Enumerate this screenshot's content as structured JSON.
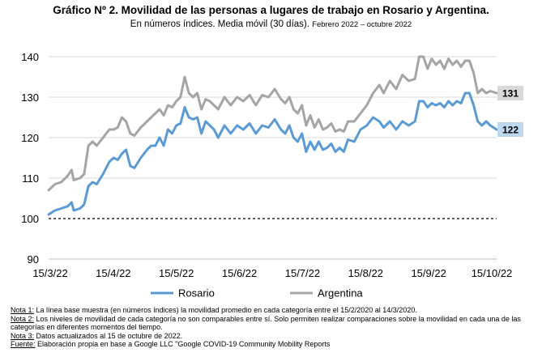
{
  "header": {
    "title": "Gráfico Nº 2. Movilidad de las personas a lugares de trabajo en Rosario y Argentina.",
    "subtitle_main": "En números índices. Media móvil (30 días).",
    "subtitle_period": "Febrero 2022 – octubre 2022"
  },
  "chart_data": {
    "type": "line",
    "title": "Gráfico Nº 2. Movilidad de las personas a lugares de trabajo en Rosario y Argentina.",
    "subtitle": "En números índices. Media móvil (30 días). Febrero 2022 – octubre 2022",
    "xlabel": "",
    "ylabel": "",
    "x_start": "2022-03-15",
    "x_end": "2022-10-15",
    "x_ticks": [
      "15/3/22",
      "15/4/22",
      "15/5/22",
      "15/6/22",
      "15/7/22",
      "15/8/22",
      "15/9/22",
      "15/10/22"
    ],
    "y_ticks": [
      90,
      100,
      110,
      120,
      130,
      140
    ],
    "ylim": [
      90,
      145
    ],
    "baseline": 100,
    "grid": "horizontal",
    "legend": "bottom",
    "series": [
      {
        "name": "Rosario",
        "color": "#5b9bd5",
        "end_label": "122",
        "points": [
          [
            "2022-03-15",
            101
          ],
          [
            "2022-03-18",
            102
          ],
          [
            "2022-03-21",
            102.5
          ],
          [
            "2022-03-24",
            103
          ],
          [
            "2022-03-26",
            104
          ],
          [
            "2022-03-27",
            102
          ],
          [
            "2022-03-30",
            102.5
          ],
          [
            "2022-04-01",
            103.5
          ],
          [
            "2022-04-03",
            108
          ],
          [
            "2022-04-05",
            109
          ],
          [
            "2022-04-07",
            108.5
          ],
          [
            "2022-04-10",
            111
          ],
          [
            "2022-04-13",
            114
          ],
          [
            "2022-04-15",
            115
          ],
          [
            "2022-04-17",
            114.5
          ],
          [
            "2022-04-19",
            116
          ],
          [
            "2022-04-21",
            117
          ],
          [
            "2022-04-23",
            113
          ],
          [
            "2022-04-25",
            112.5
          ],
          [
            "2022-04-28",
            115
          ],
          [
            "2022-05-01",
            117
          ],
          [
            "2022-05-03",
            118
          ],
          [
            "2022-05-05",
            118
          ],
          [
            "2022-05-07",
            120
          ],
          [
            "2022-05-09",
            118
          ],
          [
            "2022-05-11",
            122
          ],
          [
            "2022-05-13",
            121
          ],
          [
            "2022-05-15",
            123
          ],
          [
            "2022-05-17",
            123.5
          ],
          [
            "2022-05-19",
            127.5
          ],
          [
            "2022-05-21",
            125
          ],
          [
            "2022-05-23",
            124.5
          ],
          [
            "2022-05-25",
            125
          ],
          [
            "2022-05-27",
            121
          ],
          [
            "2022-05-29",
            124
          ],
          [
            "2022-05-31",
            123
          ],
          [
            "2022-06-02",
            122
          ],
          [
            "2022-06-04",
            120
          ],
          [
            "2022-06-07",
            123
          ],
          [
            "2022-06-10",
            121
          ],
          [
            "2022-06-13",
            123
          ],
          [
            "2022-06-16",
            122
          ],
          [
            "2022-06-19",
            123.5
          ],
          [
            "2022-06-22",
            121
          ],
          [
            "2022-06-25",
            123
          ],
          [
            "2022-06-28",
            122.5
          ],
          [
            "2022-07-01",
            124.5
          ],
          [
            "2022-07-04",
            122
          ],
          [
            "2022-07-06",
            121
          ],
          [
            "2022-07-08",
            123
          ],
          [
            "2022-07-10",
            120
          ],
          [
            "2022-07-12",
            119
          ],
          [
            "2022-07-14",
            121
          ],
          [
            "2022-07-16",
            116.5
          ],
          [
            "2022-07-18",
            119
          ],
          [
            "2022-07-20",
            117
          ],
          [
            "2022-07-22",
            119
          ],
          [
            "2022-07-24",
            117
          ],
          [
            "2022-07-26",
            117.5
          ],
          [
            "2022-07-28",
            118.5
          ],
          [
            "2022-07-30",
            116.5
          ],
          [
            "2022-08-01",
            117.5
          ],
          [
            "2022-08-03",
            116.5
          ],
          [
            "2022-08-05",
            119.5
          ],
          [
            "2022-08-08",
            119
          ],
          [
            "2022-08-11",
            122
          ],
          [
            "2022-08-14",
            123
          ],
          [
            "2022-08-17",
            125
          ],
          [
            "2022-08-20",
            124
          ],
          [
            "2022-08-22",
            122.5
          ],
          [
            "2022-08-25",
            124
          ],
          [
            "2022-08-28",
            122
          ],
          [
            "2022-08-31",
            124
          ],
          [
            "2022-09-03",
            123
          ],
          [
            "2022-09-06",
            124
          ],
          [
            "2022-09-08",
            129
          ],
          [
            "2022-09-10",
            129
          ],
          [
            "2022-09-12",
            127.5
          ],
          [
            "2022-09-14",
            128.5
          ],
          [
            "2022-09-16",
            128
          ],
          [
            "2022-09-18",
            128.5
          ],
          [
            "2022-09-20",
            127.5
          ],
          [
            "2022-09-22",
            129
          ],
          [
            "2022-09-24",
            128
          ],
          [
            "2022-09-26",
            129
          ],
          [
            "2022-09-28",
            128.5
          ],
          [
            "2022-09-30",
            131
          ],
          [
            "2022-10-02",
            131
          ],
          [
            "2022-10-04",
            128
          ],
          [
            "2022-10-06",
            124
          ],
          [
            "2022-10-08",
            123
          ],
          [
            "2022-10-10",
            124
          ],
          [
            "2022-10-12",
            123
          ],
          [
            "2022-10-15",
            122
          ]
        ]
      },
      {
        "name": "Argentina",
        "color": "#a5a5a5",
        "end_label": "131",
        "points": [
          [
            "2022-03-15",
            107
          ],
          [
            "2022-03-18",
            108.5
          ],
          [
            "2022-03-21",
            109
          ],
          [
            "2022-03-24",
            110.5
          ],
          [
            "2022-03-26",
            112
          ],
          [
            "2022-03-27",
            109.5
          ],
          [
            "2022-03-30",
            110
          ],
          [
            "2022-04-01",
            111
          ],
          [
            "2022-04-03",
            118
          ],
          [
            "2022-04-05",
            119
          ],
          [
            "2022-04-07",
            118
          ],
          [
            "2022-04-10",
            120
          ],
          [
            "2022-04-13",
            122
          ],
          [
            "2022-04-15",
            122
          ],
          [
            "2022-04-17",
            122.5
          ],
          [
            "2022-04-19",
            125
          ],
          [
            "2022-04-21",
            124
          ],
          [
            "2022-04-23",
            121
          ],
          [
            "2022-04-25",
            120.5
          ],
          [
            "2022-04-28",
            122.5
          ],
          [
            "2022-05-01",
            124
          ],
          [
            "2022-05-03",
            125
          ],
          [
            "2022-05-05",
            126
          ],
          [
            "2022-05-07",
            127
          ],
          [
            "2022-05-09",
            125.5
          ],
          [
            "2022-05-11",
            128
          ],
          [
            "2022-05-13",
            127.5
          ],
          [
            "2022-05-15",
            129
          ],
          [
            "2022-05-17",
            130
          ],
          [
            "2022-05-19",
            135
          ],
          [
            "2022-05-21",
            131
          ],
          [
            "2022-05-23",
            130
          ],
          [
            "2022-05-25",
            131
          ],
          [
            "2022-05-27",
            127
          ],
          [
            "2022-05-29",
            129.5
          ],
          [
            "2022-05-31",
            129
          ],
          [
            "2022-06-02",
            128
          ],
          [
            "2022-06-04",
            127
          ],
          [
            "2022-06-07",
            130
          ],
          [
            "2022-06-10",
            128
          ],
          [
            "2022-06-13",
            130
          ],
          [
            "2022-06-16",
            129
          ],
          [
            "2022-06-19",
            130.5
          ],
          [
            "2022-06-22",
            128
          ],
          [
            "2022-06-25",
            130.5
          ],
          [
            "2022-06-28",
            130
          ],
          [
            "2022-07-01",
            132
          ],
          [
            "2022-07-04",
            129.5
          ],
          [
            "2022-07-06",
            128.5
          ],
          [
            "2022-07-08",
            130
          ],
          [
            "2022-07-10",
            127
          ],
          [
            "2022-07-12",
            126
          ],
          [
            "2022-07-14",
            128
          ],
          [
            "2022-07-16",
            123
          ],
          [
            "2022-07-18",
            125.5
          ],
          [
            "2022-07-20",
            122.5
          ],
          [
            "2022-07-22",
            124.5
          ],
          [
            "2022-07-24",
            122
          ],
          [
            "2022-07-26",
            122.5
          ],
          [
            "2022-07-28",
            123.5
          ],
          [
            "2022-07-30",
            121.5
          ],
          [
            "2022-08-01",
            122
          ],
          [
            "2022-08-03",
            121.5
          ],
          [
            "2022-08-05",
            124
          ],
          [
            "2022-08-08",
            124
          ],
          [
            "2022-08-11",
            126
          ],
          [
            "2022-08-14",
            128
          ],
          [
            "2022-08-17",
            131
          ],
          [
            "2022-08-20",
            133
          ],
          [
            "2022-08-22",
            131
          ],
          [
            "2022-08-25",
            134
          ],
          [
            "2022-08-28",
            132
          ],
          [
            "2022-08-31",
            135.5
          ],
          [
            "2022-09-03",
            134
          ],
          [
            "2022-09-06",
            134.5
          ],
          [
            "2022-09-08",
            140
          ],
          [
            "2022-09-10",
            140
          ],
          [
            "2022-09-12",
            137
          ],
          [
            "2022-09-14",
            139.5
          ],
          [
            "2022-09-16",
            138
          ],
          [
            "2022-09-18",
            139
          ],
          [
            "2022-09-20",
            137
          ],
          [
            "2022-09-22",
            139.5
          ],
          [
            "2022-09-24",
            138
          ],
          [
            "2022-09-26",
            139
          ],
          [
            "2022-09-28",
            137.5
          ],
          [
            "2022-09-30",
            139
          ],
          [
            "2022-10-02",
            139
          ],
          [
            "2022-10-04",
            136
          ],
          [
            "2022-10-06",
            131
          ],
          [
            "2022-10-08",
            132
          ],
          [
            "2022-10-10",
            131
          ],
          [
            "2022-10-12",
            131.5
          ],
          [
            "2022-10-15",
            131
          ]
        ]
      }
    ]
  },
  "notes": [
    {
      "label": "Nota 1:",
      "text": " La línea base muestra (en números índices) la movilidad promedio en cada categoría entre el 15/2/2020 al 14/3/2020."
    },
    {
      "label": "Nota 2:",
      "text": " Los niveles de movilidad de cada categoría no son comparables entre sí. Solo permiten realizar comparaciones sobre la movilidad en cada una de las categorías en diferentes momentos del tiempo."
    },
    {
      "label": "Nota 3:",
      "text": " Datos actualizados al 15 de octubre de 2022."
    },
    {
      "label": "Fuente:",
      "text": " Elaboración propia en base a Google LLC \"Google COVID-19 Community Mobility Reports"
    }
  ]
}
